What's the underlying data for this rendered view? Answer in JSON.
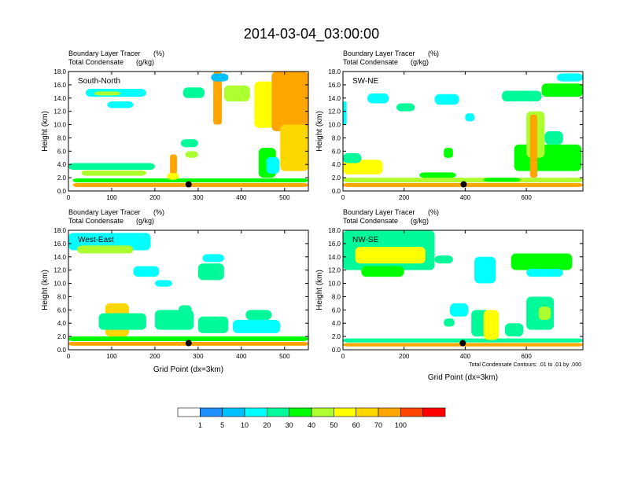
{
  "title": "2014-03-04_03:00:00",
  "chart_data": [
    {
      "type": "heatmap",
      "name": "South-North",
      "label": "South-North",
      "field_label": "Boundary Layer Tracer",
      "field_units": "(%)",
      "contour_label": "Total Condensate",
      "contour_units": "(g/kg)",
      "ylabel": "Height (km)",
      "xlabel": "",
      "xlim": [
        0,
        555
      ],
      "ylim": [
        0,
        18
      ],
      "xticks": [
        0,
        100,
        200,
        300,
        400,
        500
      ],
      "yticks": [
        "0.0",
        "2.0",
        "4.0",
        "6.0",
        "8.0",
        "10.0",
        "12.0",
        "14.0",
        "16.0",
        "18.0"
      ],
      "marker_x": 278,
      "marker_y": 1.0,
      "blobs": [
        {
          "x": 10,
          "y": 0.6,
          "w": 545,
          "h": 0.6,
          "v": 75
        },
        {
          "x": 10,
          "y": 1.3,
          "w": 545,
          "h": 0.6,
          "v": 35
        },
        {
          "x": 0,
          "y": 3.2,
          "w": 200,
          "h": 1.0,
          "v": 20
        },
        {
          "x": 30,
          "y": 2.3,
          "w": 150,
          "h": 0.8,
          "v": 45
        },
        {
          "x": 40,
          "y": 14.2,
          "w": 140,
          "h": 1.2,
          "v": 15
        },
        {
          "x": 60,
          "y": 14.4,
          "w": 60,
          "h": 0.6,
          "v": 40
        },
        {
          "x": 90,
          "y": 12.5,
          "w": 60,
          "h": 1.0,
          "v": 10
        },
        {
          "x": 235,
          "y": 2.5,
          "w": 16,
          "h": 3.0,
          "v": 80
        },
        {
          "x": 228,
          "y": 1.7,
          "w": 28,
          "h": 1.0,
          "v": 55
        },
        {
          "x": 260,
          "y": 6.6,
          "w": 40,
          "h": 1.2,
          "v": 20
        },
        {
          "x": 270,
          "y": 5.0,
          "w": 30,
          "h": 1.0,
          "v": 45
        },
        {
          "x": 265,
          "y": 14.0,
          "w": 50,
          "h": 1.6,
          "v": 25
        },
        {
          "x": 335,
          "y": 10.0,
          "w": 20,
          "h": 8.0,
          "v": 75
        },
        {
          "x": 360,
          "y": 13.5,
          "w": 60,
          "h": 2.4,
          "v": 40
        },
        {
          "x": 430,
          "y": 9.5,
          "w": 45,
          "h": 7.0,
          "v": 55
        },
        {
          "x": 470,
          "y": 9.0,
          "w": 85,
          "h": 9.0,
          "v": 80
        },
        {
          "x": 440,
          "y": 2.0,
          "w": 40,
          "h": 4.5,
          "v": 30
        },
        {
          "x": 458,
          "y": 2.6,
          "w": 30,
          "h": 2.5,
          "v": 10
        },
        {
          "x": 490,
          "y": 3.0,
          "w": 65,
          "h": 7.0,
          "v": 68
        },
        {
          "x": 330,
          "y": 16.5,
          "w": 40,
          "h": 1.2,
          "v": 5
        }
      ]
    },
    {
      "type": "heatmap",
      "name": "SW-NE",
      "label": "SW-NE",
      "field_label": "Boundary Layer Tracer",
      "field_units": "(%)",
      "contour_label": "Total Condensate",
      "contour_units": "(g/kg)",
      "ylabel": "Height (km)",
      "xlabel": "",
      "xlim": [
        0,
        785
      ],
      "ylim": [
        0,
        18
      ],
      "xticks": [
        0,
        200,
        400,
        600
      ],
      "yticks": [
        "0.0",
        "2.0",
        "4.0",
        "6.0",
        "8.0",
        "10.0",
        "12.0",
        "14.0",
        "16.0",
        "18.0"
      ],
      "marker_x": 395,
      "marker_y": 1.0,
      "blobs": [
        {
          "x": 0,
          "y": 0.6,
          "w": 785,
          "h": 0.6,
          "v": 78
        },
        {
          "x": 0,
          "y": 1.3,
          "w": 785,
          "h": 0.7,
          "v": 40
        },
        {
          "x": 0,
          "y": 2.5,
          "w": 130,
          "h": 2.2,
          "v": 55
        },
        {
          "x": 0,
          "y": 4.2,
          "w": 60,
          "h": 1.5,
          "v": 25
        },
        {
          "x": 0,
          "y": 10.0,
          "w": 12,
          "h": 3.5,
          "v": 10
        },
        {
          "x": 80,
          "y": 13.2,
          "w": 70,
          "h": 1.5,
          "v": 15
        },
        {
          "x": 175,
          "y": 12.0,
          "w": 60,
          "h": 1.2,
          "v": 20
        },
        {
          "x": 300,
          "y": 13.0,
          "w": 80,
          "h": 1.6,
          "v": 15
        },
        {
          "x": 330,
          "y": 5.0,
          "w": 30,
          "h": 1.5,
          "v": 35
        },
        {
          "x": 250,
          "y": 2.0,
          "w": 120,
          "h": 0.8,
          "v": 30
        },
        {
          "x": 400,
          "y": 10.5,
          "w": 30,
          "h": 1.2,
          "v": 15
        },
        {
          "x": 460,
          "y": 1.4,
          "w": 120,
          "h": 0.6,
          "v": 30
        },
        {
          "x": 520,
          "y": 13.5,
          "w": 130,
          "h": 1.6,
          "v": 25
        },
        {
          "x": 560,
          "y": 3.0,
          "w": 220,
          "h": 4.0,
          "v": 30
        },
        {
          "x": 600,
          "y": 5.0,
          "w": 60,
          "h": 7.0,
          "v": 45
        },
        {
          "x": 612,
          "y": 2.0,
          "w": 24,
          "h": 9.5,
          "v": 70
        },
        {
          "x": 650,
          "y": 14.2,
          "w": 135,
          "h": 2.0,
          "v": 30
        },
        {
          "x": 700,
          "y": 16.5,
          "w": 85,
          "h": 1.2,
          "v": 15
        },
        {
          "x": 660,
          "y": 7.0,
          "w": 60,
          "h": 2.0,
          "v": 20
        }
      ]
    },
    {
      "type": "heatmap",
      "name": "West-East",
      "label": "West-East",
      "field_label": "Boundary Layer Tracer",
      "field_units": "(%)",
      "contour_label": "Total Condensate",
      "contour_units": "(g/kg)",
      "ylabel": "Height (km)",
      "xlabel": "Grid Point (dx=3km)",
      "xlim": [
        0,
        555
      ],
      "ylim": [
        0,
        18
      ],
      "xticks": [
        0,
        100,
        200,
        300,
        400,
        500
      ],
      "yticks": [
        "0.0",
        "2.0",
        "4.0",
        "6.0",
        "8.0",
        "10.0",
        "12.0",
        "14.0",
        "16.0",
        "18.0"
      ],
      "marker_x": 278,
      "marker_y": 1.0,
      "blobs": [
        {
          "x": 0,
          "y": 0.6,
          "w": 555,
          "h": 0.6,
          "v": 78
        },
        {
          "x": 0,
          "y": 1.3,
          "w": 555,
          "h": 0.7,
          "v": 30
        },
        {
          "x": 0,
          "y": 15.0,
          "w": 190,
          "h": 2.6,
          "v": 18
        },
        {
          "x": 20,
          "y": 14.5,
          "w": 130,
          "h": 1.2,
          "v": 45
        },
        {
          "x": 150,
          "y": 11.0,
          "w": 60,
          "h": 1.6,
          "v": 10
        },
        {
          "x": 200,
          "y": 9.5,
          "w": 40,
          "h": 1.0,
          "v": 10
        },
        {
          "x": 300,
          "y": 10.5,
          "w": 60,
          "h": 2.5,
          "v": 20
        },
        {
          "x": 310,
          "y": 13.2,
          "w": 50,
          "h": 1.2,
          "v": 10
        },
        {
          "x": 85,
          "y": 2.0,
          "w": 55,
          "h": 5.0,
          "v": 60
        },
        {
          "x": 70,
          "y": 3.0,
          "w": 110,
          "h": 2.5,
          "v": 25
        },
        {
          "x": 200,
          "y": 3.0,
          "w": 90,
          "h": 3.0,
          "v": 20
        },
        {
          "x": 255,
          "y": 5.5,
          "w": 30,
          "h": 1.2,
          "v": 20
        },
        {
          "x": 300,
          "y": 2.5,
          "w": 70,
          "h": 2.5,
          "v": 25
        },
        {
          "x": 380,
          "y": 2.5,
          "w": 110,
          "h": 2.0,
          "v": 15
        },
        {
          "x": 410,
          "y": 4.5,
          "w": 60,
          "h": 1.5,
          "v": 25
        }
      ]
    },
    {
      "type": "heatmap",
      "name": "NW-SE",
      "label": "NW-SE",
      "field_label": "Boundary Layer Tracer",
      "field_units": "(%)",
      "contour_label": "Total Condensate",
      "contour_units": "(g/kg)",
      "ylabel": "Height (km)",
      "xlabel": "Grid Point (dx=3km)",
      "xlim": [
        0,
        785
      ],
      "ylim": [
        0,
        18
      ],
      "xticks": [
        0,
        200,
        400,
        600
      ],
      "yticks": [
        "0.0",
        "2.0",
        "4.0",
        "6.0",
        "8.0",
        "10.0",
        "12.0",
        "14.0",
        "16.0",
        "18.0"
      ],
      "marker_x": 392,
      "marker_y": 1.0,
      "annotation": "Total Condensate Contours: .01 to .01 by .000",
      "blobs": [
        {
          "x": 0,
          "y": 0.5,
          "w": 785,
          "h": 0.5,
          "v": 72
        },
        {
          "x": 0,
          "y": 1.1,
          "w": 785,
          "h": 0.6,
          "v": 20
        },
        {
          "x": 0,
          "y": 12.0,
          "w": 300,
          "h": 6.0,
          "v": 22
        },
        {
          "x": 40,
          "y": 13.0,
          "w": 230,
          "h": 2.5,
          "v": 50
        },
        {
          "x": 60,
          "y": 11.0,
          "w": 140,
          "h": 1.6,
          "v": 35
        },
        {
          "x": 300,
          "y": 13.0,
          "w": 60,
          "h": 1.2,
          "v": 20
        },
        {
          "x": 430,
          "y": 10.0,
          "w": 70,
          "h": 4.0,
          "v": 10
        },
        {
          "x": 550,
          "y": 12.0,
          "w": 200,
          "h": 2.5,
          "v": 30
        },
        {
          "x": 600,
          "y": 11.0,
          "w": 120,
          "h": 1.2,
          "v": 15
        },
        {
          "x": 330,
          "y": 3.5,
          "w": 35,
          "h": 1.2,
          "v": 20
        },
        {
          "x": 350,
          "y": 5.0,
          "w": 60,
          "h": 2.0,
          "v": 15
        },
        {
          "x": 420,
          "y": 2.0,
          "w": 60,
          "h": 4.0,
          "v": 25
        },
        {
          "x": 460,
          "y": 1.5,
          "w": 50,
          "h": 4.5,
          "v": 55
        },
        {
          "x": 530,
          "y": 2.0,
          "w": 60,
          "h": 2.0,
          "v": 25
        },
        {
          "x": 600,
          "y": 3.0,
          "w": 90,
          "h": 5.0,
          "v": 25
        },
        {
          "x": 640,
          "y": 4.5,
          "w": 40,
          "h": 2.0,
          "v": 45
        }
      ]
    }
  ],
  "colorbar": {
    "levels": [
      "1",
      "5",
      "10",
      "20",
      "30",
      "40",
      "50",
      "60",
      "70",
      "100"
    ],
    "colors": [
      "#ffffff",
      "#1e90ff",
      "#00bfff",
      "#00ffff",
      "#00fa9a",
      "#00ff00",
      "#adff2f",
      "#ffff00",
      "#ffd700",
      "#ffa500",
      "#ff4500",
      "#ff0000"
    ]
  }
}
